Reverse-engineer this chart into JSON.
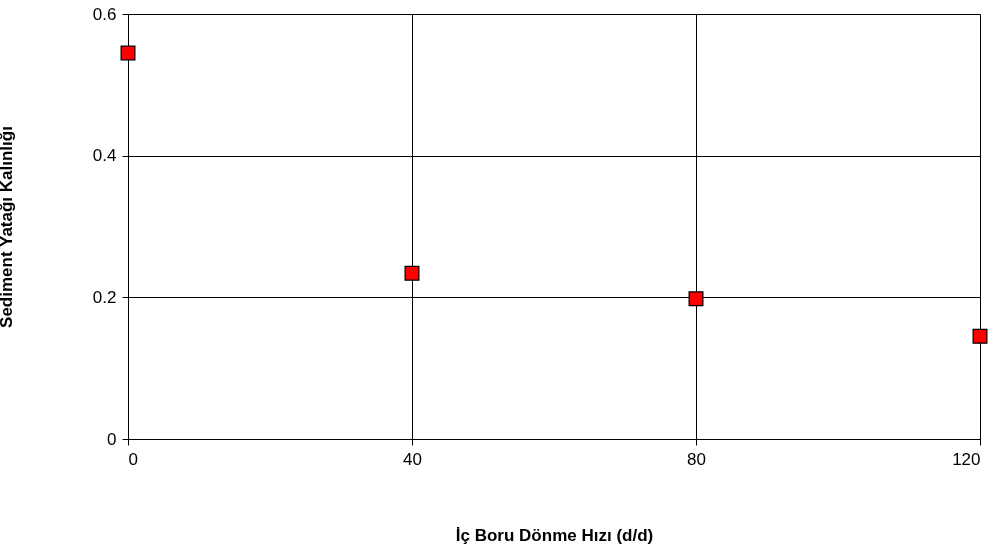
{
  "chart_data": {
    "type": "scatter",
    "xlabel": "İç  Boru Dönme Hızı (d/d)",
    "ylabel": "Sediment Yatağı Kalınlığı",
    "x": [
      0,
      40,
      80,
      120
    ],
    "series": [
      {
        "color": "#ff0000",
        "values": [
          0.545,
          0.234,
          0.198,
          0.145
        ]
      }
    ],
    "xlim": [
      0,
      120
    ],
    "xticks": [
      0,
      40,
      80,
      120
    ],
    "ylim": [
      0,
      0.6
    ],
    "yticks": [
      0,
      0.2,
      0.4,
      0.6
    ],
    "grid": true,
    "marker": "square"
  }
}
